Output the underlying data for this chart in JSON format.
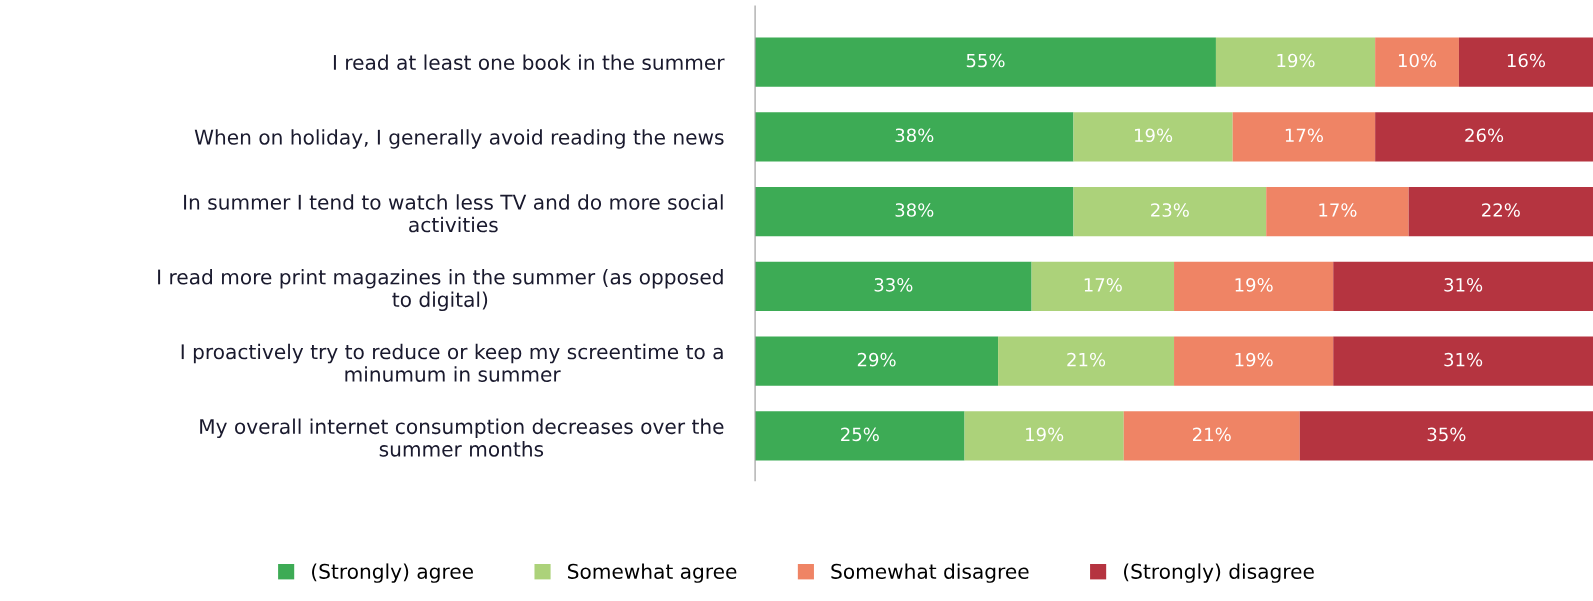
{
  "chart_data": {
    "type": "bar",
    "orientation": "horizontal",
    "stacked": true,
    "categories": [
      "I read at least one book in the summer",
      "When on holiday, I generally avoid reading the news",
      "In summer I tend to watch less TV and do more social activities",
      "I read more print magazines in the summer (as opposed to digital)",
      "I proactively try to reduce or keep my screentime to a minumum in summer",
      "My overall internet consumption decreases over the summer months"
    ],
    "series": [
      {
        "name": "(Strongly) agree",
        "color": "#3dab55",
        "values": [
          55,
          38,
          38,
          33,
          29,
          25
        ],
        "value_labels": [
          "55%",
          "38%",
          "38%",
          "33%",
          "29%",
          "25%"
        ]
      },
      {
        "name": "Somewhat agree",
        "color": "#acd27a",
        "values": [
          19,
          19,
          23,
          17,
          21,
          19
        ],
        "value_labels": [
          "19%",
          "19%",
          "23%",
          "17%",
          "21%",
          "19%"
        ]
      },
      {
        "name": "Somewhat disagree",
        "color": "#ef8465",
        "values": [
          10,
          17,
          17,
          19,
          19,
          21
        ],
        "value_labels": [
          "10%",
          "17%",
          "17%",
          "19%",
          "19%",
          "21%"
        ]
      },
      {
        "name": "(Strongly) disagree",
        "color": "#b53440",
        "values": [
          16,
          26,
          22,
          31,
          31,
          35
        ],
        "value_labels": [
          "16%",
          "26%",
          "22%",
          "31%",
          "31%",
          "35%"
        ]
      }
    ],
    "xlim": [
      0,
      100
    ],
    "tick_labels": "y",
    "grid": false,
    "legend": "bottom"
  }
}
